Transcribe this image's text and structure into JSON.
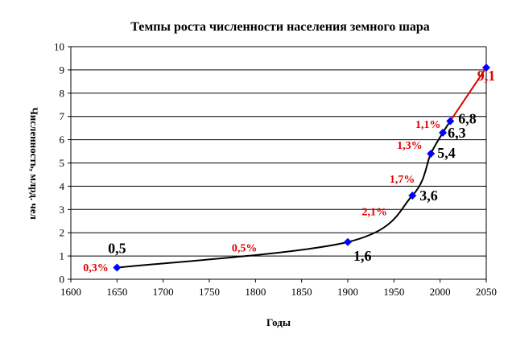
{
  "chart_data": {
    "type": "line",
    "title": "Темпы роста численности населения земного шара",
    "xlabel": "Годы",
    "ylabel": "Численность, млрд. чел",
    "xlim": [
      1600,
      2050
    ],
    "ylim": [
      0,
      10
    ],
    "x_ticks": [
      "1600",
      "1650",
      "1700",
      "1750",
      "1800",
      "1850",
      "1900",
      "1950",
      "2000",
      "2050"
    ],
    "y_ticks": [
      "0",
      "1",
      "2",
      "3",
      "4",
      "5",
      "6",
      "7",
      "8",
      "9",
      "10"
    ],
    "grid": "horizontal",
    "series": [
      {
        "color": "#000000",
        "marker_color": "#0000ff",
        "points": [
          {
            "x": 1650,
            "y": 0.5,
            "label": "0,5"
          },
          {
            "x": 1900,
            "y": 1.6,
            "label": "1,6"
          },
          {
            "x": 1970,
            "y": 3.6,
            "label": "3,6"
          },
          {
            "x": 1990,
            "y": 5.4,
            "label": "5,4"
          },
          {
            "x": 2003,
            "y": 6.3,
            "label": "6,3"
          },
          {
            "x": 2011,
            "y": 6.8,
            "label": "6,8"
          }
        ]
      },
      {
        "color": "#e00000",
        "marker_color": "#0000ff",
        "points": [
          {
            "x": 2011,
            "y": 6.8
          },
          {
            "x": 2050,
            "y": 9.1,
            "label": "9,1"
          }
        ]
      }
    ],
    "annotations": [
      "0,3%",
      "0,5%",
      "2,1%",
      "1,7%",
      "1,3%",
      "1,1%"
    ]
  }
}
